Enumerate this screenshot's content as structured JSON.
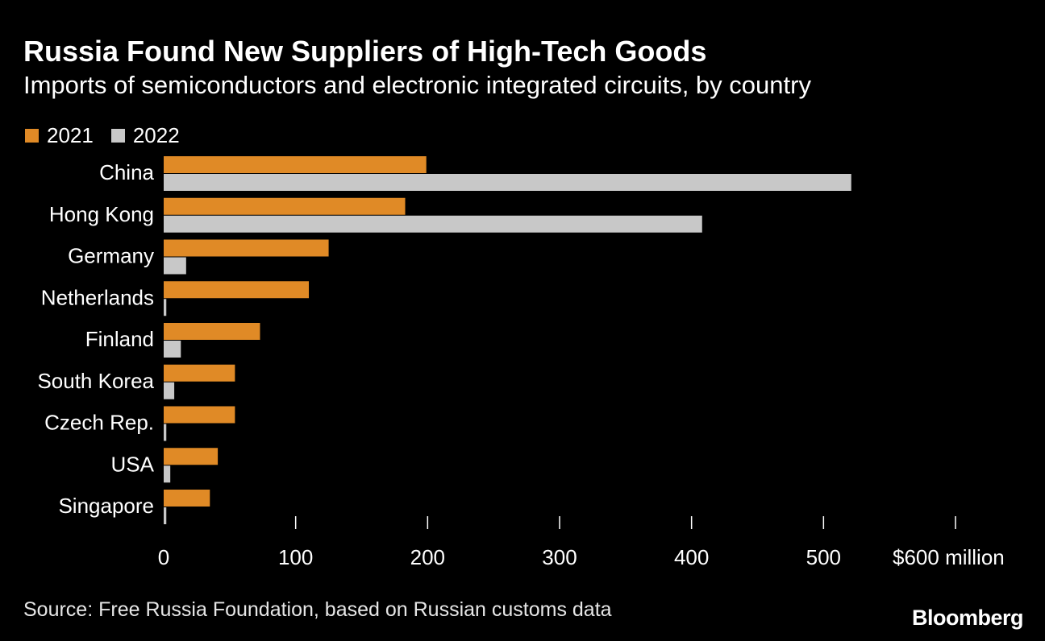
{
  "header": {
    "title": "Russia Found New Suppliers of High-Tech Goods",
    "subtitle": "Imports of semiconductors and electronic integrated circuits, by country"
  },
  "legend": {
    "items": [
      {
        "label": "2021",
        "color": "#e08a26"
      },
      {
        "label": "2022",
        "color": "#c8c8c8"
      }
    ]
  },
  "footer": {
    "source": "Source: Free Russia Foundation, based on Russian customs data",
    "brand": "Bloomberg"
  },
  "chart_data": {
    "type": "bar",
    "orientation": "horizontal",
    "title": "Russia Found New Suppliers of High-Tech Goods",
    "subtitle": "Imports of semiconductors and electronic integrated circuits, by country",
    "categories": [
      "China",
      "Hong Kong",
      "Germany",
      "Netherlands",
      "Finland",
      "South Korea",
      "Czech Rep.",
      "USA",
      "Singapore"
    ],
    "series": [
      {
        "name": "2021",
        "color": "#e08a26",
        "values": [
          199,
          183,
          125,
          110,
          73,
          54,
          54,
          41,
          35
        ]
      },
      {
        "name": "2022",
        "color": "#c8c8c8",
        "values": [
          521,
          408,
          17,
          2,
          13,
          8,
          2,
          5,
          2
        ]
      }
    ],
    "xlabel": "",
    "ylabel": "",
    "xlim": [
      0,
      600
    ],
    "x_ticks": [
      0,
      100,
      200,
      300,
      400,
      500,
      600
    ],
    "x_tick_labels": [
      "0",
      "100",
      "200",
      "300",
      "400",
      "500",
      "$600 million"
    ],
    "grid": false,
    "legend_position": "top-left"
  }
}
